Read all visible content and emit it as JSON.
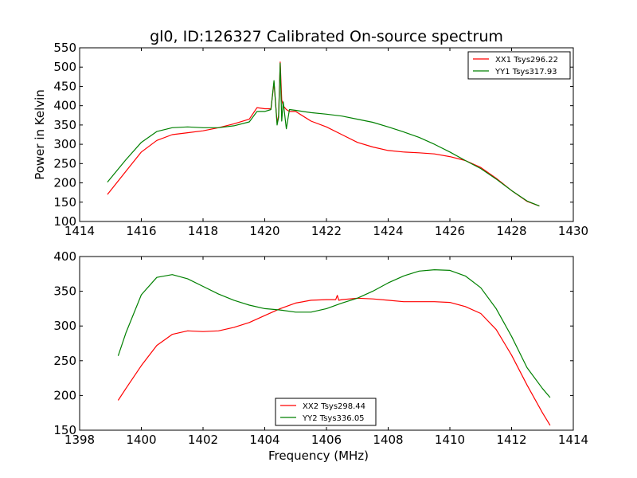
{
  "chart_data": [
    {
      "type": "line",
      "title": "gl0, ID:126327 Calibrated On-source spectrum",
      "xlabel": "",
      "ylabel": "Power in Kelvin",
      "xlim": [
        1414,
        1430
      ],
      "ylim": [
        100,
        550
      ],
      "xticks": [
        "1414",
        "1416",
        "1418",
        "1420",
        "1422",
        "1424",
        "1426",
        "1428",
        "1430"
      ],
      "yticks": [
        "100",
        "150",
        "200",
        "250",
        "300",
        "350",
        "400",
        "450",
        "500",
        "550"
      ],
      "grid": false,
      "legend_position": "top-right",
      "series": [
        {
          "name": "XX1 Tsys296.22",
          "color": "#ff0000",
          "x": [
            1414.9,
            1415.5,
            1416.0,
            1416.5,
            1417.0,
            1417.5,
            1418.0,
            1418.5,
            1419.0,
            1419.5,
            1419.75,
            1420.0,
            1420.2,
            1420.3,
            1420.4,
            1420.45,
            1420.5,
            1420.55,
            1420.6,
            1420.7,
            1420.8,
            1421.0,
            1421.5,
            1422.0,
            1422.5,
            1423.0,
            1423.5,
            1424.0,
            1424.5,
            1425.0,
            1425.5,
            1426.0,
            1426.5,
            1427.0,
            1427.5,
            1428.0,
            1428.5,
            1428.9
          ],
          "y": [
            170,
            230,
            280,
            310,
            325,
            330,
            335,
            343,
            353,
            365,
            395,
            392,
            392,
            460,
            355,
            375,
            513,
            415,
            400,
            390,
            385,
            385,
            360,
            345,
            325,
            305,
            293,
            284,
            280,
            278,
            275,
            268,
            258,
            240,
            212,
            180,
            152,
            140
          ]
        },
        {
          "name": "YY1 Tsys317.93",
          "color": "#008000",
          "x": [
            1414.9,
            1415.5,
            1416.0,
            1416.5,
            1417.0,
            1417.5,
            1418.0,
            1418.5,
            1419.0,
            1419.5,
            1419.75,
            1420.0,
            1420.2,
            1420.3,
            1420.4,
            1420.45,
            1420.5,
            1420.55,
            1420.6,
            1420.7,
            1420.8,
            1421.0,
            1421.5,
            1422.0,
            1422.5,
            1423.0,
            1423.5,
            1424.0,
            1424.5,
            1425.0,
            1425.5,
            1426.0,
            1426.5,
            1427.0,
            1427.5,
            1428.0,
            1428.5,
            1428.9
          ],
          "y": [
            202,
            260,
            305,
            333,
            343,
            345,
            343,
            343,
            348,
            358,
            385,
            385,
            390,
            465,
            350,
            370,
            510,
            360,
            410,
            340,
            390,
            388,
            382,
            378,
            373,
            365,
            357,
            345,
            332,
            318,
            300,
            280,
            258,
            237,
            210,
            180,
            153,
            140
          ]
        }
      ]
    },
    {
      "type": "line",
      "title": "",
      "xlabel": "Frequency (MHz)",
      "ylabel": "",
      "xlim": [
        1398,
        1414
      ],
      "ylim": [
        150,
        400
      ],
      "xticks": [
        "1398",
        "1400",
        "1402",
        "1404",
        "1406",
        "1408",
        "1410",
        "1412",
        "1414"
      ],
      "yticks": [
        "150",
        "200",
        "250",
        "300",
        "350",
        "400"
      ],
      "grid": false,
      "legend_position": "bottom-center",
      "series": [
        {
          "name": "XX2 Tsys298.44",
          "color": "#ff0000",
          "x": [
            1399.25,
            1399.5,
            1400.0,
            1400.5,
            1401.0,
            1401.5,
            1402.0,
            1402.5,
            1403.0,
            1403.5,
            1404.0,
            1404.5,
            1405.0,
            1405.5,
            1406.0,
            1406.3,
            1406.35,
            1406.4,
            1406.5,
            1407.0,
            1407.5,
            1408.0,
            1408.5,
            1409.0,
            1409.5,
            1410.0,
            1410.5,
            1411.0,
            1411.5,
            1412.0,
            1412.5,
            1413.0,
            1413.25
          ],
          "y": [
            193,
            210,
            243,
            272,
            288,
            293,
            292,
            293,
            298,
            305,
            315,
            325,
            333,
            337,
            338,
            338,
            344,
            337,
            338,
            340,
            339,
            337,
            335,
            335,
            335,
            334,
            328,
            318,
            295,
            258,
            215,
            175,
            157
          ]
        },
        {
          "name": "YY2 Tsys336.05",
          "color": "#008000",
          "x": [
            1399.25,
            1399.5,
            1400.0,
            1400.5,
            1401.0,
            1401.5,
            1402.0,
            1402.5,
            1403.0,
            1403.5,
            1404.0,
            1404.5,
            1405.0,
            1405.5,
            1406.0,
            1406.5,
            1407.0,
            1407.5,
            1408.0,
            1408.5,
            1409.0,
            1409.5,
            1410.0,
            1410.5,
            1411.0,
            1411.5,
            1412.0,
            1412.5,
            1413.0,
            1413.25
          ],
          "y": [
            257,
            290,
            345,
            370,
            374,
            368,
            357,
            346,
            337,
            330,
            325,
            323,
            320,
            320,
            325,
            333,
            340,
            350,
            362,
            372,
            379,
            381,
            380,
            372,
            355,
            325,
            285,
            240,
            210,
            197
          ]
        }
      ]
    }
  ]
}
